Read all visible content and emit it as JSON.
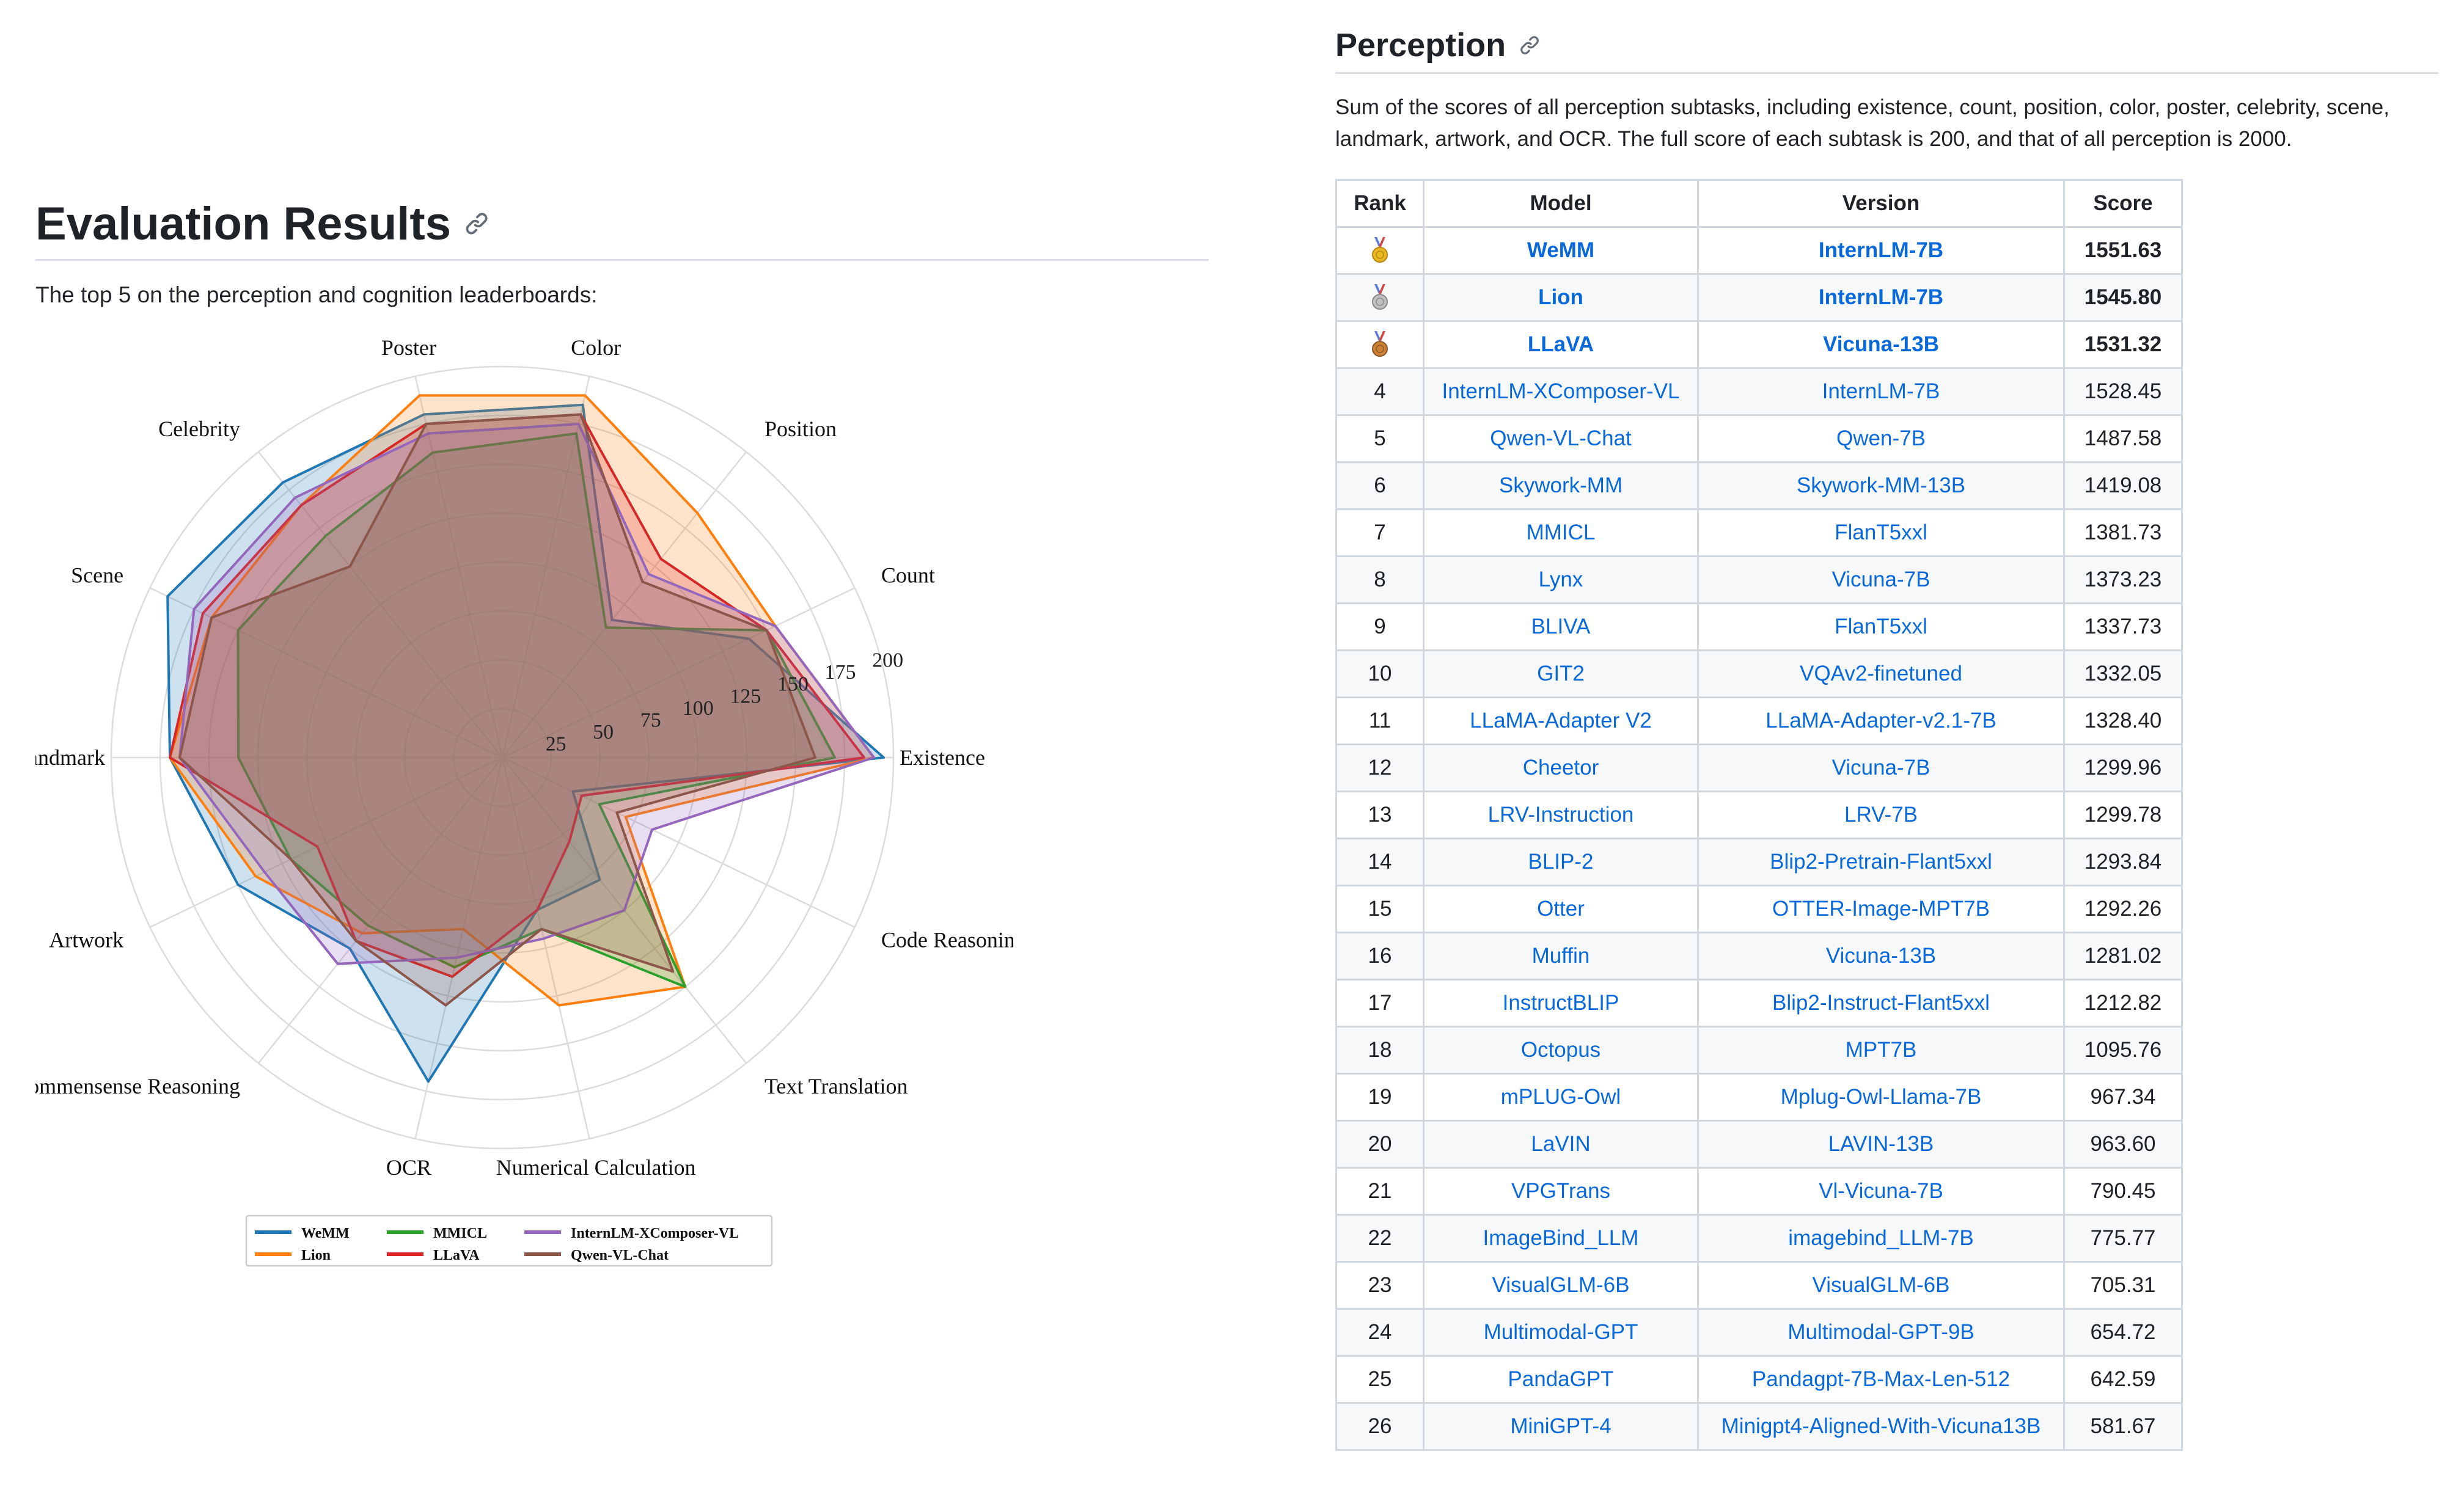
{
  "evaluation": {
    "title": "Evaluation Results",
    "intro": "The top 5 on the perception and cognition leaderboards:"
  },
  "perception": {
    "title": "Perception",
    "description": "Sum of the scores of all perception subtasks, including existence, count, position, color, poster, celebrity, scene, landmark, artwork, and OCR. The full score of each subtask is 200, and that of all perception is 2000.",
    "columns": [
      "Rank",
      "Model",
      "Version",
      "Score"
    ],
    "rows": [
      {
        "rank": "",
        "medal": "gold",
        "model": "WeMM",
        "version": "InternLM-7B",
        "score": "1551.63"
      },
      {
        "rank": "",
        "medal": "silver",
        "model": "Lion",
        "version": "InternLM-7B",
        "score": "1545.80"
      },
      {
        "rank": "",
        "medal": "bronze",
        "model": "LLaVA",
        "version": "Vicuna-13B",
        "score": "1531.32"
      },
      {
        "rank": "4",
        "model": "InternLM-XComposer-VL",
        "version": "InternLM-7B",
        "score": "1528.45"
      },
      {
        "rank": "5",
        "model": "Qwen-VL-Chat",
        "version": "Qwen-7B",
        "score": "1487.58"
      },
      {
        "rank": "6",
        "model": "Skywork-MM",
        "version": "Skywork-MM-13B",
        "score": "1419.08"
      },
      {
        "rank": "7",
        "model": "MMICL",
        "version": "FlanT5xxl",
        "score": "1381.73"
      },
      {
        "rank": "8",
        "model": "Lynx",
        "version": "Vicuna-7B",
        "score": "1373.23"
      },
      {
        "rank": "9",
        "model": "BLIVA",
        "version": "FlanT5xxl",
        "score": "1337.73"
      },
      {
        "rank": "10",
        "model": "GIT2",
        "version": "VQAv2-finetuned",
        "score": "1332.05"
      },
      {
        "rank": "11",
        "model": "LLaMA-Adapter V2",
        "version": "LLaMA-Adapter-v2.1-7B",
        "score": "1328.40"
      },
      {
        "rank": "12",
        "model": "Cheetor",
        "version": "Vicuna-7B",
        "score": "1299.96"
      },
      {
        "rank": "13",
        "model": "LRV-Instruction",
        "version": "LRV-7B",
        "score": "1299.78"
      },
      {
        "rank": "14",
        "model": "BLIP-2",
        "version": "Blip2-Pretrain-Flant5xxl",
        "score": "1293.84"
      },
      {
        "rank": "15",
        "model": "Otter",
        "version": "OTTER-Image-MPT7B",
        "score": "1292.26"
      },
      {
        "rank": "16",
        "model": "Muffin",
        "version": "Vicuna-13B",
        "score": "1281.02"
      },
      {
        "rank": "17",
        "model": "InstructBLIP",
        "version": "Blip2-Instruct-Flant5xxl",
        "score": "1212.82"
      },
      {
        "rank": "18",
        "model": "Octopus",
        "version": "MPT7B",
        "score": "1095.76"
      },
      {
        "rank": "19",
        "model": "mPLUG-Owl",
        "version": "Mplug-Owl-Llama-7B",
        "score": "967.34"
      },
      {
        "rank": "20",
        "model": "LaVIN",
        "version": "LAVIN-13B",
        "score": "963.60"
      },
      {
        "rank": "21",
        "model": "VPGTrans",
        "version": "Vl-Vicuna-7B",
        "score": "790.45"
      },
      {
        "rank": "22",
        "model": "ImageBind_LLM",
        "version": "imagebind_LLM-7B",
        "score": "775.77"
      },
      {
        "rank": "23",
        "model": "VisualGLM-6B",
        "version": "VisualGLM-6B",
        "score": "705.31"
      },
      {
        "rank": "24",
        "model": "Multimodal-GPT",
        "version": "Multimodal-GPT-9B",
        "score": "654.72"
      },
      {
        "rank": "25",
        "model": "PandaGPT",
        "version": "Pandagpt-7B-Max-Len-512",
        "score": "642.59"
      },
      {
        "rank": "26",
        "model": "MiniGPT-4",
        "version": "Minigpt4-Aligned-With-Vicuna13B",
        "score": "581.67"
      }
    ]
  },
  "chart_data": {
    "type": "radar",
    "axes": [
      "Existence",
      "Count",
      "Position",
      "Color",
      "Poster",
      "Celebrity",
      "Scene",
      "Landmark",
      "Artwork",
      "Commensense Reasoning",
      "OCR",
      "Numerical Calculation",
      "Text Translation",
      "Code Reasoning"
    ],
    "rlim": [
      0,
      200
    ],
    "rticks": [
      25,
      50,
      75,
      100,
      125,
      150,
      175,
      200
    ],
    "grid": true,
    "legend_position": "bottom",
    "series": [
      {
        "name": "WeMM",
        "color": "#1f77b4",
        "values": [
          195,
          140,
          90,
          185,
          180,
          180,
          190,
          170,
          150,
          125,
          170,
          80,
          80,
          40
        ]
      },
      {
        "name": "Lion",
        "color": "#ff7f0e",
        "values": [
          190,
          155,
          160,
          190,
          190,
          165,
          165,
          170,
          140,
          115,
          90,
          130,
          150,
          70
        ]
      },
      {
        "name": "MMICL",
        "color": "#2ca02c",
        "values": [
          170,
          150,
          85,
          170,
          160,
          145,
          150,
          135,
          120,
          110,
          110,
          90,
          150,
          55
        ]
      },
      {
        "name": "LLaVA",
        "color": "#d62728",
        "values": [
          185,
          150,
          130,
          180,
          175,
          165,
          170,
          170,
          105,
          120,
          115,
          80,
          55,
          45
        ]
      },
      {
        "name": "InternLM-XComposer-VL",
        "color": "#9467bd",
        "values": [
          190,
          155,
          120,
          175,
          170,
          170,
          175,
          165,
          135,
          135,
          105,
          95,
          100,
          85
        ]
      },
      {
        "name": "Qwen-VL-Chat",
        "color": "#8c564b",
        "values": [
          160,
          150,
          115,
          180,
          175,
          125,
          165,
          165,
          120,
          120,
          130,
          90,
          140,
          65
        ]
      }
    ]
  }
}
